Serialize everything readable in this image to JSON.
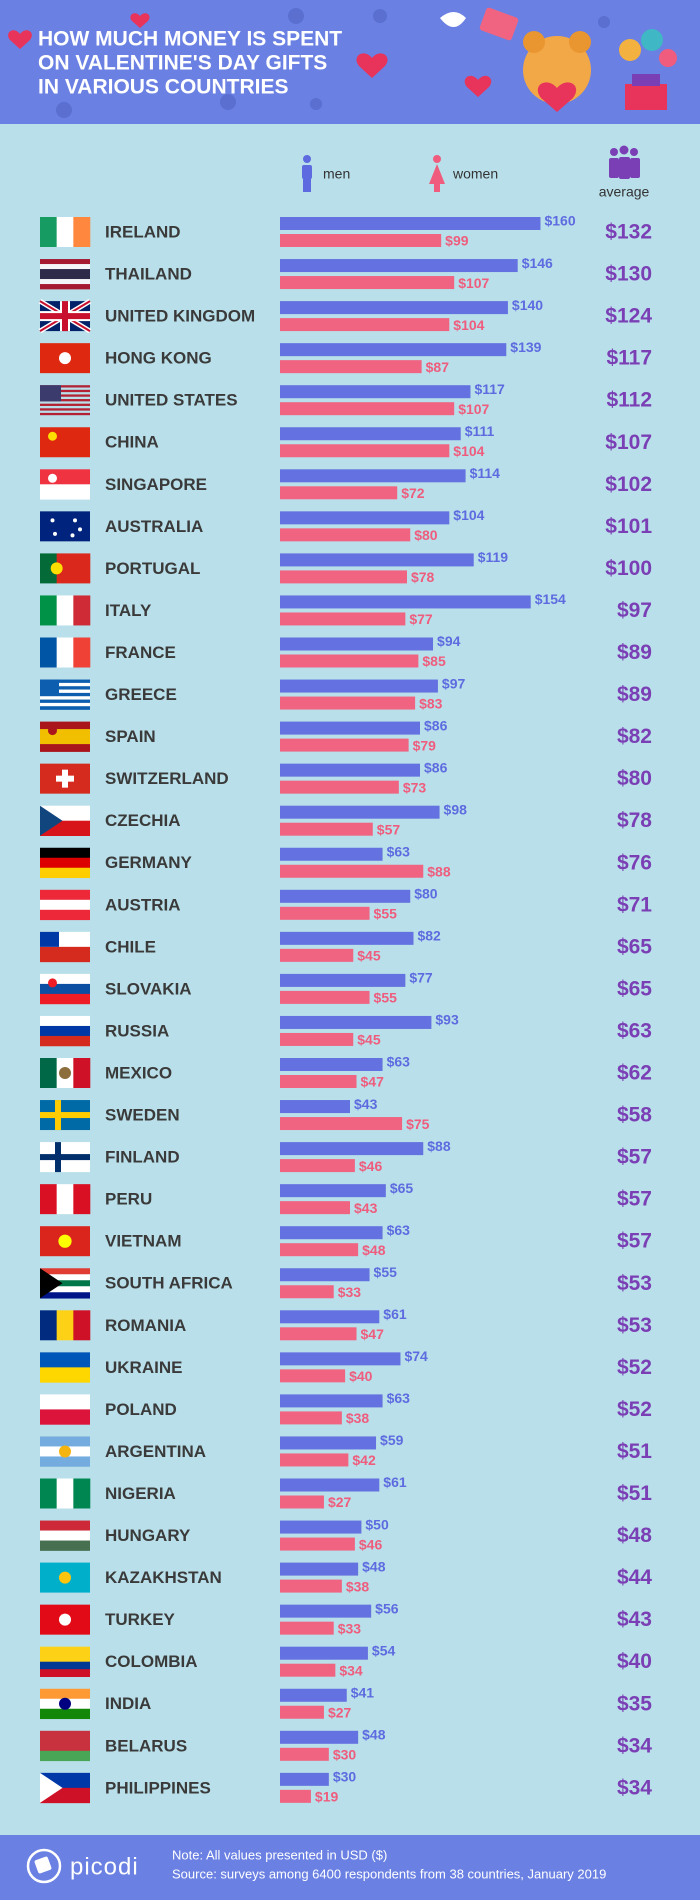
{
  "chart_data": {
    "type": "bar",
    "title": [
      "HOW MUCH MONEY IS SPENT",
      "ON VALENTINE'S DAY GIFTS",
      "IN VARIOUS COUNTRIES"
    ],
    "categories": [
      "IRELAND",
      "THAILAND",
      "UNITED KINGDOM",
      "HONG KONG",
      "UNITED STATES",
      "CHINA",
      "SINGAPORE",
      "AUSTRALIA",
      "PORTUGAL",
      "ITALY",
      "FRANCE",
      "GREECE",
      "SPAIN",
      "SWITZERLAND",
      "CZECHIA",
      "GERMANY",
      "AUSTRIA",
      "CHILE",
      "SLOVAKIA",
      "RUSSIA",
      "MEXICO",
      "SWEDEN",
      "FINLAND",
      "PERU",
      "VIETNAM",
      "SOUTH AFRICA",
      "ROMANIA",
      "UKRAINE",
      "POLAND",
      "ARGENTINA",
      "NIGERIA",
      "HUNGARY",
      "KAZAKHSTAN",
      "TURKEY",
      "COLOMBIA",
      "INDIA",
      "BELARUS",
      "PHILIPPINES"
    ],
    "series": [
      {
        "name": "men",
        "color": "#6471e0",
        "values": [
          160,
          146,
          140,
          139,
          117,
          111,
          114,
          104,
          119,
          154,
          94,
          97,
          86,
          86,
          98,
          63,
          80,
          82,
          77,
          93,
          63,
          43,
          88,
          65,
          63,
          55,
          61,
          74,
          63,
          59,
          61,
          50,
          48,
          56,
          54,
          41,
          48,
          30
        ],
        "value_labels": [
          "$160",
          "$146",
          "$140",
          "$139",
          "$117",
          "$111",
          "$114",
          "$104",
          "$119",
          "$154",
          "$94",
          "$97",
          "$86",
          "$86",
          "$98",
          "$63",
          "$80",
          "$82",
          "$77",
          "$93",
          "$63",
          "$43",
          "$88",
          "$65",
          "$63",
          "$55",
          "$61",
          "$74",
          "$63",
          "$59",
          "$61",
          "$50",
          "$48",
          "$56",
          "$54",
          "$41",
          "$48",
          "$30"
        ]
      },
      {
        "name": "women",
        "color": "#f06482",
        "values": [
          99,
          107,
          104,
          87,
          107,
          104,
          72,
          80,
          78,
          77,
          85,
          83,
          79,
          73,
          57,
          88,
          55,
          45,
          55,
          45,
          47,
          75,
          46,
          43,
          48,
          33,
          47,
          40,
          38,
          42,
          27,
          46,
          38,
          33,
          34,
          27,
          30,
          19
        ],
        "value_labels": [
          "$99",
          "$107",
          "$104",
          "$87",
          "$107",
          "$104",
          "$72",
          "$80",
          "$78",
          "$77",
          "$85",
          "$83",
          "$79",
          "$73",
          "$57",
          "$88",
          "$55",
          "$45",
          "$55",
          "$45",
          "$47",
          "$75",
          "$46",
          "$43",
          "$48",
          "$33",
          "$47",
          "$40",
          "$38",
          "$42",
          "$27",
          "$46",
          "$38",
          "$33",
          "$34",
          "$27",
          "$30",
          "$19"
        ]
      },
      {
        "name": "average",
        "color": "#7b3fb5",
        "values": [
          132,
          130,
          124,
          117,
          112,
          107,
          102,
          101,
          100,
          97,
          89,
          89,
          82,
          80,
          78,
          76,
          71,
          65,
          65,
          63,
          62,
          58,
          57,
          57,
          57,
          53,
          53,
          52,
          52,
          51,
          51,
          48,
          44,
          43,
          40,
          35,
          34,
          34
        ],
        "value_labels": [
          "$132",
          "$130",
          "$124",
          "$117",
          "$112",
          "$107",
          "$102",
          "$101",
          "$100",
          "$97",
          "$89",
          "$89",
          "$82",
          "$80",
          "$78",
          "$76",
          "$71",
          "$65",
          "$65",
          "$63",
          "$62",
          "$58",
          "$57",
          "$57",
          "$57",
          "$53",
          "$53",
          "$52",
          "$52",
          "$51",
          "$51",
          "$48",
          "$44",
          "$43",
          "$40",
          "$35",
          "$34",
          "$34"
        ]
      }
    ],
    "brand": "picodi",
    "note": "Note: All values presented in USD ($)",
    "source": "Source: surveys among 6400 respondents from 38 countries, January 2019"
  }
}
